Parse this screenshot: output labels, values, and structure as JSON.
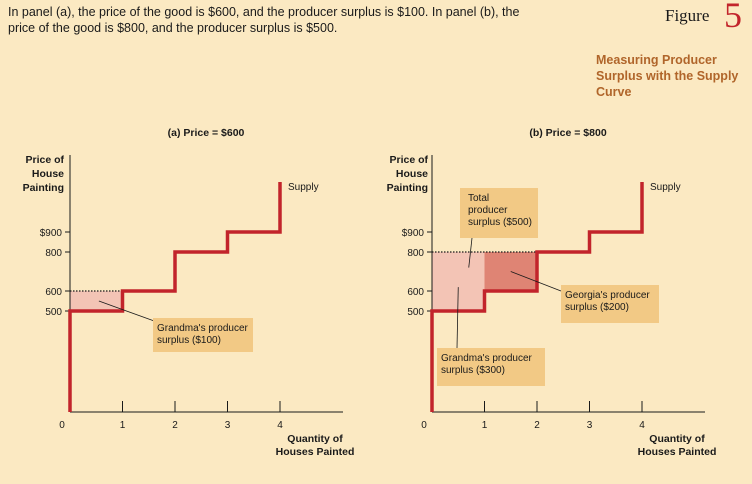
{
  "caption": "In panel (a), the price of the good is $600, and the producer surplus is $100. In panel (b), the price of the good is $800, and the producer surplus is $500.",
  "figure": {
    "label": "Figure",
    "number": "5",
    "title": "Measuring Producer Surplus with the Supply Curve"
  },
  "colors": {
    "background": "#fbe9c2",
    "supply": "#c2242b",
    "surplus_light": "#f3c4b5",
    "surplus_dark": "#df8474",
    "callout": "#f2c985",
    "title": "#b0652a"
  },
  "chart_data": [
    {
      "type": "line",
      "title": "(a) Price = $600",
      "ylabel": "Price of House Painting",
      "xlabel": "Quantity of Houses Painted",
      "x_ticks": [
        "0",
        "1",
        "2",
        "3",
        "4"
      ],
      "y_ticks": [
        {
          "label": "$900",
          "value": 900
        },
        {
          "label": "800",
          "value": 800
        },
        {
          "label": "600",
          "value": 600
        },
        {
          "label": "500",
          "value": 500
        }
      ],
      "xlim": [
        0,
        5
      ],
      "ylim": [
        0,
        1200
      ],
      "series": [
        {
          "name": "Supply",
          "x": [
            0,
            0,
            1,
            1,
            2,
            2,
            3,
            3,
            4,
            4
          ],
          "y": [
            0,
            500,
            500,
            600,
            600,
            800,
            800,
            900,
            900,
            1050
          ]
        }
      ],
      "price": 600,
      "surplus_regions": [
        {
          "x": [
            0,
            1
          ],
          "y": [
            500,
            600
          ],
          "shade": "light"
        }
      ],
      "annotations": [
        {
          "text": [
            "Grandma's producer",
            "surplus ($100)"
          ],
          "target": [
            0.55,
            550
          ]
        }
      ]
    },
    {
      "type": "line",
      "title": "(b) Price = $800",
      "ylabel": "Price of House Painting",
      "xlabel": "Quantity of Houses Painted",
      "x_ticks": [
        "0",
        "1",
        "2",
        "3",
        "4"
      ],
      "y_ticks": [
        {
          "label": "$900",
          "value": 900
        },
        {
          "label": "800",
          "value": 800
        },
        {
          "label": "600",
          "value": 600
        },
        {
          "label": "500",
          "value": 500
        }
      ],
      "xlim": [
        0,
        5
      ],
      "ylim": [
        0,
        1200
      ],
      "series": [
        {
          "name": "Supply",
          "x": [
            0,
            0,
            1,
            1,
            2,
            2,
            3,
            3,
            4,
            4
          ],
          "y": [
            0,
            500,
            500,
            600,
            600,
            800,
            800,
            900,
            900,
            1050
          ]
        }
      ],
      "price": 800,
      "surplus_regions": [
        {
          "x": [
            0,
            1
          ],
          "y": [
            500,
            800
          ],
          "shade": "light"
        },
        {
          "x": [
            1,
            2
          ],
          "y": [
            600,
            800
          ],
          "shade": "dark"
        }
      ],
      "annotations": [
        {
          "text": [
            "Total",
            "producer",
            "surplus ($500)"
          ],
          "target": [
            0.7,
            720
          ]
        },
        {
          "text": [
            "Georgia's producer",
            "surplus ($200)"
          ],
          "target": [
            1.5,
            700
          ]
        },
        {
          "text": [
            "Grandma's producer",
            "surplus ($300)"
          ],
          "target": [
            0.5,
            620
          ]
        }
      ]
    }
  ]
}
